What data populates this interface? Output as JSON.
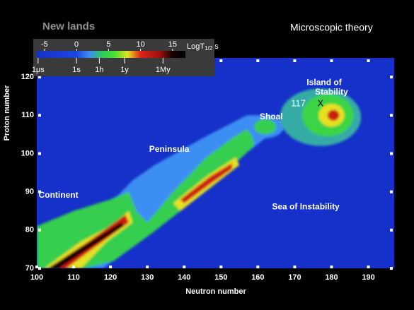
{
  "chart_data": {
    "type": "heatmap",
    "title": "New lands",
    "subtitle": "Microscopic theory",
    "x_label": "Neutron number",
    "y_label": "Proton number",
    "xlim": [
      100,
      197
    ],
    "ylim": [
      70,
      125
    ],
    "xticks": [
      100,
      110,
      120,
      130,
      140,
      150,
      160,
      170,
      180,
      190
    ],
    "yticks": [
      70,
      80,
      90,
      100,
      110,
      120
    ],
    "background_value": -6,
    "colorbar": {
      "title": "LogT",
      "title_sub": "1/2",
      "title_unit": "s",
      "lim": [
        -6.2,
        17
      ],
      "ticks": [
        -5,
        0,
        5,
        10,
        15
      ],
      "time_ticks": [
        {
          "value": -6,
          "label": "1μs"
        },
        {
          "value": 0,
          "label": "1s"
        },
        {
          "value": 3.56,
          "label": "1h"
        },
        {
          "value": 7.5,
          "label": "1y"
        },
        {
          "value": 13.5,
          "label": "1My"
        }
      ]
    },
    "colormap": [
      [
        -6.2,
        "#1530c8"
      ],
      [
        0,
        "#1c46e0"
      ],
      [
        2,
        "#3c8ef2"
      ],
      [
        4,
        "#2ec85a"
      ],
      [
        6,
        "#48e030"
      ],
      [
        8,
        "#e6e020"
      ],
      [
        10,
        "#e02418"
      ],
      [
        13,
        "#a01010"
      ],
      [
        15,
        "#140000"
      ],
      [
        17,
        "#000000"
      ]
    ],
    "regions": [
      {
        "value": 2,
        "points": [
          [
            100,
            76
          ],
          [
            112,
            84
          ],
          [
            122,
            89
          ],
          [
            126,
            93
          ],
          [
            132,
            97
          ],
          [
            145,
            104
          ],
          [
            157,
            110
          ],
          [
            165,
            110
          ],
          [
            162,
            104
          ],
          [
            150,
            95
          ],
          [
            136,
            85
          ],
          [
            129,
            78
          ],
          [
            118,
            70
          ],
          [
            100,
            70
          ]
        ]
      },
      {
        "value": 4.5,
        "points": [
          [
            100,
            70
          ],
          [
            100,
            81
          ],
          [
            110,
            85
          ],
          [
            120,
            88
          ],
          [
            125,
            90
          ],
          [
            127,
            85
          ],
          [
            130,
            82
          ],
          [
            137,
            90
          ],
          [
            146,
            99
          ],
          [
            153,
            104
          ],
          [
            158,
            107
          ],
          [
            159,
            102
          ],
          [
            150,
            94
          ],
          [
            139,
            85
          ],
          [
            131,
            79
          ],
          [
            121,
            72
          ],
          [
            113,
            70
          ]
        ]
      },
      {
        "value": 8,
        "points": [
          [
            102,
            70
          ],
          [
            112,
            77
          ],
          [
            120,
            81
          ],
          [
            125,
            85
          ],
          [
            126,
            82
          ],
          [
            119,
            77
          ],
          [
            112,
            70
          ]
        ]
      },
      {
        "value": 11,
        "points": [
          [
            103,
            70
          ],
          [
            114,
            77
          ],
          [
            124,
            84
          ],
          [
            125,
            82
          ],
          [
            115,
            75
          ],
          [
            108,
            70
          ]
        ]
      },
      {
        "value": 15,
        "points": [
          [
            103,
            70
          ],
          [
            112,
            75.5
          ],
          [
            123,
            82
          ],
          [
            123.5,
            81
          ],
          [
            113,
            74.5
          ],
          [
            106,
            70
          ]
        ]
      },
      {
        "value": 8,
        "points": [
          [
            137,
            87
          ],
          [
            146,
            94
          ],
          [
            154,
            99
          ],
          [
            155,
            97
          ],
          [
            147,
            91
          ],
          [
            139,
            85
          ]
        ]
      },
      {
        "value": 11,
        "points": [
          [
            139,
            88
          ],
          [
            147,
            94
          ],
          [
            153,
            97.5
          ],
          [
            153,
            96
          ],
          [
            147,
            92
          ],
          [
            140,
            87
          ]
        ]
      }
    ],
    "islands": [
      {
        "value": 2,
        "center": [
          162,
          107
        ],
        "radius": [
          5,
          3
        ]
      },
      {
        "value": 4.5,
        "center": [
          162,
          107
        ],
        "radius": [
          3,
          2
        ]
      },
      {
        "value": 3,
        "center": [
          177,
          109.5
        ],
        "radius": [
          11,
          7.5
        ]
      },
      {
        "value": 5,
        "center": [
          179,
          110
        ],
        "radius": [
          7,
          5.5
        ]
      },
      {
        "value": 8,
        "center": [
          180,
          110
        ],
        "radius": [
          3.5,
          3
        ]
      },
      {
        "value": 11,
        "center": [
          180.5,
          110
        ],
        "radius": [
          1.6,
          1.4
        ]
      }
    ],
    "annotations": [
      "Continent",
      "Peninsula",
      "Shoal",
      "Island of",
      "Stability",
      "117",
      "X",
      "Sea of Instability"
    ]
  }
}
